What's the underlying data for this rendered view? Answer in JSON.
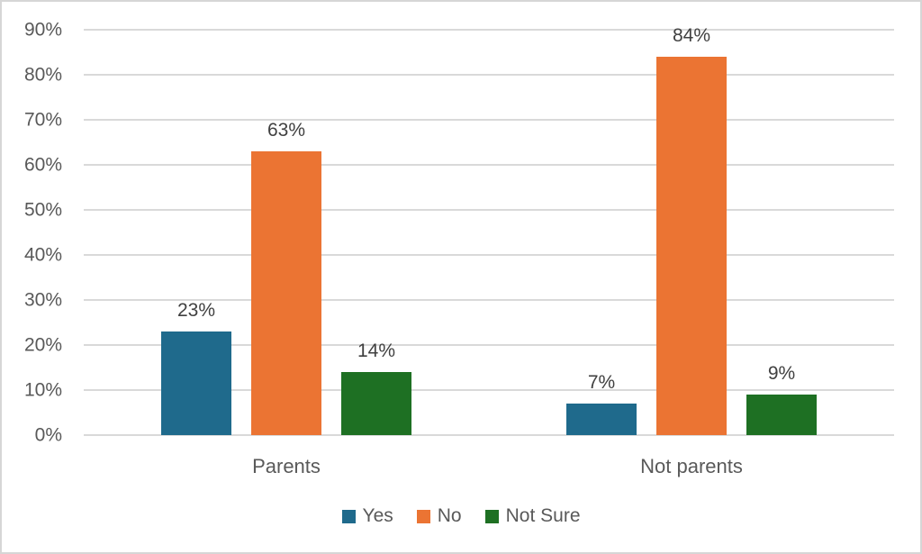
{
  "chart_data": {
    "type": "bar",
    "title": "",
    "categories": [
      "Parents",
      "Not parents"
    ],
    "series": [
      {
        "name": "Yes",
        "color": "#1F6A8C",
        "values": [
          23,
          7
        ],
        "labels": [
          "23%",
          "7%"
        ]
      },
      {
        "name": "No",
        "color": "#EB7433",
        "values": [
          63,
          84
        ],
        "labels": [
          "63%",
          "84%"
        ]
      },
      {
        "name": "Not Sure",
        "color": "#1E7023",
        "values": [
          14,
          9
        ],
        "labels": [
          "14%",
          "9%"
        ]
      }
    ],
    "ylim": [
      0,
      90
    ],
    "ytick_step": 10,
    "ytick_labels": [
      "0%",
      "10%",
      "20%",
      "30%",
      "40%",
      "50%",
      "60%",
      "70%",
      "80%",
      "90%"
    ],
    "grid": true,
    "legend_position": "bottom",
    "colors": {
      "grid": "#D9D9D9",
      "tick_label": "#595959",
      "category_label": "#595959",
      "data_label": "#404040",
      "legend_label": "#595959",
      "background": "#FFFFFF",
      "border": "#D6D6D6"
    }
  }
}
